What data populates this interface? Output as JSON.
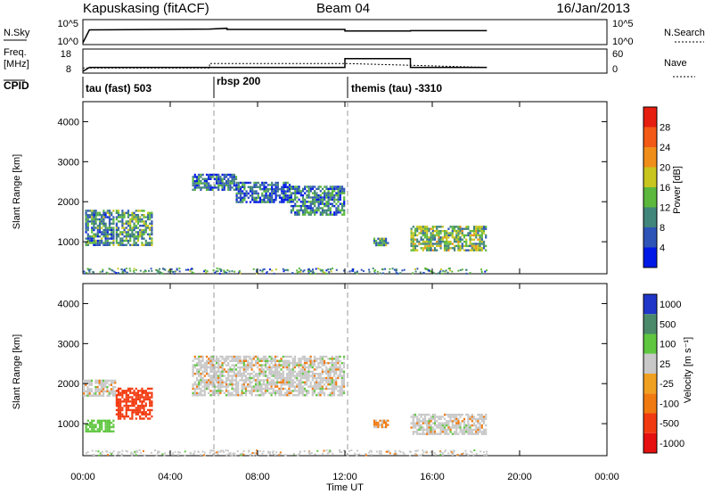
{
  "header": {
    "title": "Kapuskasing (fitACF)",
    "beam": "Beam 04",
    "date": "16/Jan/2013"
  },
  "panels": {
    "nsky": {
      "label": "N.Sky",
      "ticks_left": [
        "10^5",
        "10^0"
      ],
      "ticks_right": [
        "10^5",
        "10^0"
      ],
      "right_label": "N.Search"
    },
    "freq": {
      "label_line1": "Freq.",
      "label_line2": "[MHz]",
      "ticks_left": [
        "18",
        "8"
      ],
      "ticks_right": [
        "60",
        "0"
      ],
      "right_label": "Nave"
    },
    "cpid": {
      "label": "CPID",
      "segments": [
        {
          "text": "tau (fast) 503",
          "start_hour": 0
        },
        {
          "text": "rbsp 200",
          "start_hour": 6
        },
        {
          "text": "themis (tau) -3310",
          "start_hour": 12
        }
      ]
    }
  },
  "axes": {
    "xlabel": "Time UT",
    "ylabel": "Slant Range [km]",
    "xticks": [
      "00:00",
      "04:00",
      "08:00",
      "12:00",
      "16:00",
      "20:00",
      "00:00"
    ],
    "yticks": [
      "1000",
      "2000",
      "3000",
      "4000"
    ]
  },
  "colorbars": {
    "power": {
      "label": "Power [dB]",
      "ticks": [
        "4",
        "8",
        "12",
        "16",
        "20",
        "24",
        "28"
      ],
      "colors": [
        "#0019e6",
        "#2e54b8",
        "#42857a",
        "#5bb83c",
        "#c9c51f",
        "#f08e1a",
        "#f25a15",
        "#e61e0f"
      ]
    },
    "velocity": {
      "label": "Velocity [m s⁻¹]",
      "ticks": [
        "1000",
        "500",
        "100",
        "25",
        "-25",
        "-100",
        "-500",
        "-1000"
      ],
      "colors": [
        "#2036c8",
        "#4a8a6a",
        "#5fc640",
        "#c8c8c8",
        "#f0a020",
        "#f07a10",
        "#f23a10",
        "#e61010"
      ]
    }
  },
  "chart_data": [
    {
      "type": "line",
      "name": "N.Sky / N.Search",
      "xlim": [
        0,
        24
      ],
      "x_hours": [
        0,
        0.3,
        0.3,
        5.8,
        5.8,
        6.6,
        6.6,
        12,
        12,
        15,
        15,
        18.5
      ],
      "y_log10": [
        0,
        3.3,
        3.3,
        3.5,
        3.5,
        3.7,
        3.4,
        3.4,
        3.0,
        3.0,
        3.1,
        3.1
      ]
    },
    {
      "type": "line",
      "name": "Freq. / Nave",
      "series": [
        {
          "name": "Freq.",
          "x_hours": [
            0,
            0.3,
            12,
            12,
            15,
            15,
            18.5
          ],
          "y_mhz": [
            8,
            10,
            10,
            14.5,
            14.5,
            10,
            10
          ]
        },
        {
          "name": "Nave",
          "x_hours": [
            0,
            5.8,
            5.8,
            12,
            18.5
          ],
          "y": [
            10,
            10,
            24,
            24,
            12
          ]
        }
      ]
    },
    {
      "type": "heatmap",
      "name": "Power",
      "units": "dB",
      "xlim": [
        0,
        24
      ],
      "ylim": [
        200,
        4500
      ],
      "patches": [
        {
          "t": [
            0.1,
            1.4
          ],
          "r": [
            900,
            1800
          ],
          "value": 10
        },
        {
          "t": [
            1.5,
            3.2
          ],
          "r": [
            900,
            1800
          ],
          "value": 12
        },
        {
          "t": [
            5.0,
            7.0
          ],
          "r": [
            2300,
            2700
          ],
          "value": 8
        },
        {
          "t": [
            7.0,
            9.5
          ],
          "r": [
            2000,
            2500
          ],
          "value": 7
        },
        {
          "t": [
            9.5,
            12.0
          ],
          "r": [
            1700,
            2400
          ],
          "value": 9
        },
        {
          "t": [
            13.3,
            14.0
          ],
          "r": [
            900,
            1100
          ],
          "value": 12
        },
        {
          "t": [
            15.0,
            18.5
          ],
          "r": [
            800,
            1400
          ],
          "value": 14
        }
      ]
    },
    {
      "type": "heatmap",
      "name": "Velocity",
      "units": "m/s",
      "xlim": [
        0,
        24
      ],
      "ylim": [
        200,
        4500
      ],
      "patches": [
        {
          "t": [
            0.0,
            1.5
          ],
          "r": [
            1700,
            2100
          ],
          "value": 0
        },
        {
          "t": [
            0.1,
            1.4
          ],
          "r": [
            800,
            1100
          ],
          "value": 80
        },
        {
          "t": [
            1.5,
            3.2
          ],
          "r": [
            1100,
            1900
          ],
          "value": -150
        },
        {
          "t": [
            5.0,
            12.0
          ],
          "r": [
            1700,
            2700
          ],
          "value": 0
        },
        {
          "t": [
            13.3,
            14.0
          ],
          "r": [
            900,
            1100
          ],
          "value": -40
        },
        {
          "t": [
            15.0,
            18.5
          ],
          "r": [
            750,
            1250
          ],
          "value": 0
        }
      ]
    }
  ]
}
